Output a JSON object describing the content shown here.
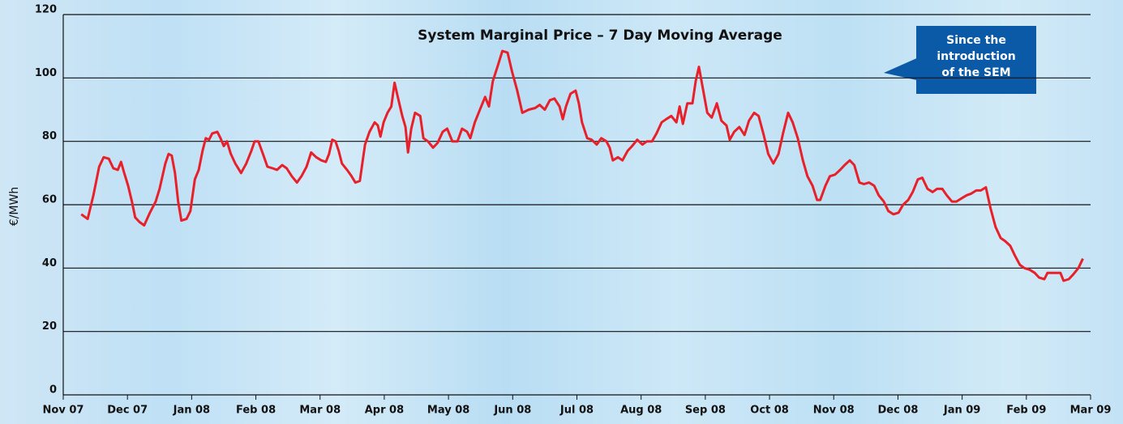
{
  "chart_data": {
    "type": "line",
    "title": "System Marginal Price  – 7 Day Moving Average",
    "y_label": "€/MWh",
    "annotation": [
      "Since the",
      "introduction",
      "of the SEM"
    ],
    "xlim": [
      0,
      16
    ],
    "xticks": [
      {
        "value": 0,
        "label": "Nov 07"
      },
      {
        "value": 1,
        "label": "Dec 07"
      },
      {
        "value": 2,
        "label": "Jan 08"
      },
      {
        "value": 3,
        "label": "Feb 08"
      },
      {
        "value": 4,
        "label": "Mar 08"
      },
      {
        "value": 5,
        "label": "Apr 08"
      },
      {
        "value": 6,
        "label": "May 08"
      },
      {
        "value": 7,
        "label": "Jun 08"
      },
      {
        "value": 8,
        "label": "Jul 08"
      },
      {
        "value": 9,
        "label": "Aug 08"
      },
      {
        "value": 10,
        "label": "Sep 08"
      },
      {
        "value": 11,
        "label": "Oct 08"
      },
      {
        "value": 12,
        "label": "Nov 08"
      },
      {
        "value": 13,
        "label": "Dec 08"
      },
      {
        "value": 14,
        "label": "Jan 09"
      },
      {
        "value": 15,
        "label": "Feb 09"
      },
      {
        "value": 16,
        "label": "Mar 09"
      }
    ],
    "ylim": [
      0,
      120
    ],
    "yticks": [
      0,
      20,
      40,
      60,
      80,
      100,
      120
    ],
    "grid": true,
    "series": [
      {
        "color": "#e8202a",
        "x": [
          0.28,
          0.38,
          0.47,
          0.56,
          0.63,
          0.71,
          0.78,
          0.85,
          0.9,
          0.95,
          1.01,
          1.07,
          1.12,
          1.19,
          1.26,
          1.35,
          1.44,
          1.5,
          1.59,
          1.64,
          1.69,
          1.74,
          1.79,
          1.84,
          1.92,
          1.98,
          2.05,
          2.11,
          2.17,
          2.22,
          2.27,
          2.32,
          2.4,
          2.45,
          2.5,
          2.55,
          2.61,
          2.68,
          2.77,
          2.85,
          2.93,
          2.98,
          3.04,
          3.11,
          3.18,
          3.26,
          3.33,
          3.41,
          3.48,
          3.56,
          3.64,
          3.71,
          3.79,
          3.86,
          3.94,
          4.02,
          4.09,
          4.14,
          4.19,
          4.24,
          4.29,
          4.34,
          4.42,
          4.49,
          4.55,
          4.62,
          4.7,
          4.77,
          4.85,
          4.9,
          4.94,
          4.99,
          5.05,
          5.11,
          5.16,
          5.21,
          5.28,
          5.33,
          5.37,
          5.42,
          5.48,
          5.56,
          5.61,
          5.68,
          5.76,
          5.83,
          5.91,
          5.98,
          6.06,
          6.14,
          6.21,
          6.29,
          6.34,
          6.41,
          6.49,
          6.57,
          6.63,
          6.69,
          6.77,
          6.84,
          6.92,
          6.99,
          7.07,
          7.15,
          7.25,
          7.35,
          7.42,
          7.5,
          7.58,
          7.65,
          7.73,
          7.78,
          7.83,
          7.9,
          7.98,
          8.03,
          8.08,
          8.16,
          8.23,
          8.31,
          8.38,
          8.46,
          8.51,
          8.56,
          8.64,
          8.71,
          8.79,
          8.86,
          8.94,
          9.02,
          9.09,
          9.17,
          9.24,
          9.32,
          9.39,
          9.47,
          9.55,
          9.6,
          9.65,
          9.72,
          9.8,
          9.85,
          9.9,
          9.95,
          10.03,
          10.1,
          10.18,
          10.25,
          10.33,
          10.38,
          10.45,
          10.53,
          10.61,
          10.68,
          10.76,
          10.83,
          10.91,
          10.98,
          11.06,
          11.14,
          11.21,
          11.29,
          11.36,
          11.44,
          11.52,
          11.59,
          11.67,
          11.74,
          11.79,
          11.87,
          11.94,
          12.02,
          12.1,
          12.17,
          12.25,
          12.32,
          12.4,
          12.47,
          12.55,
          12.63,
          12.7,
          12.78,
          12.85,
          12.93,
          13.01,
          13.08,
          13.16,
          13.23,
          13.31,
          13.38,
          13.46,
          13.54,
          13.61,
          13.69,
          13.76,
          13.84,
          13.91,
          13.99,
          14.07,
          14.14,
          14.22,
          14.29,
          14.37,
          14.44,
          14.52,
          14.6,
          14.67,
          14.75,
          14.82,
          14.9,
          14.97,
          15.05,
          15.13,
          15.2,
          15.28,
          15.33,
          15.4,
          15.48,
          15.53,
          15.58,
          15.66,
          15.73,
          15.81,
          15.88
        ],
        "values": [
          57,
          55.5,
          63,
          72,
          75,
          74.5,
          71.5,
          71,
          73.5,
          70,
          66,
          61,
          56,
          54.5,
          53.5,
          57.5,
          61,
          65,
          73,
          76,
          75.5,
          70,
          61,
          55,
          55.5,
          58,
          68,
          71,
          77,
          81,
          80.5,
          82.5,
          83,
          81,
          78.5,
          80,
          76,
          73,
          70,
          73,
          77,
          80,
          80,
          76,
          72,
          71.5,
          71,
          72.5,
          71.5,
          69,
          67,
          69,
          72,
          76.5,
          75,
          74,
          73.5,
          76,
          80.5,
          80,
          77,
          73,
          71,
          69,
          67,
          67.5,
          79,
          83,
          86,
          85,
          81.5,
          86,
          89,
          91,
          98.5,
          94,
          88,
          84.5,
          76.5,
          84,
          89,
          88,
          81,
          80,
          78,
          79.5,
          83,
          84,
          80,
          80,
          84,
          83,
          81,
          86,
          90,
          94,
          91,
          99,
          104,
          108.5,
          108,
          102,
          96,
          89,
          90,
          90.5,
          91.5,
          90,
          93,
          93.5,
          91,
          87,
          91,
          95,
          96,
          92,
          86,
          81,
          80.5,
          79,
          81,
          80,
          78,
          74,
          75,
          74,
          77,
          78.5,
          80.5,
          79,
          80,
          80,
          82.5,
          86,
          87,
          88,
          86,
          91,
          85.5,
          92,
          92,
          99,
          103.5,
          98,
          89,
          87.5,
          92,
          86.5,
          85,
          80.5,
          83,
          84.5,
          82,
          86.5,
          89,
          88,
          82,
          76,
          73,
          76,
          82.5,
          89,
          86,
          81,
          74,
          69,
          66,
          61.5,
          61.5,
          66,
          69,
          69.5,
          71,
          72.5,
          74,
          72.5,
          67,
          66.5,
          67,
          66,
          63,
          61,
          58,
          57,
          57.5,
          60,
          61.5,
          64,
          68,
          68.5,
          65,
          64,
          65,
          65,
          63,
          61,
          61,
          62,
          63,
          63.5,
          64.5,
          64.5,
          65.5,
          59,
          53,
          49.5,
          48.5,
          47,
          44,
          41,
          40,
          39.5,
          38.5,
          37,
          36.5,
          38.5,
          38.5,
          38.5,
          38.5,
          36,
          36.5,
          38,
          40,
          43
        ]
      }
    ]
  }
}
